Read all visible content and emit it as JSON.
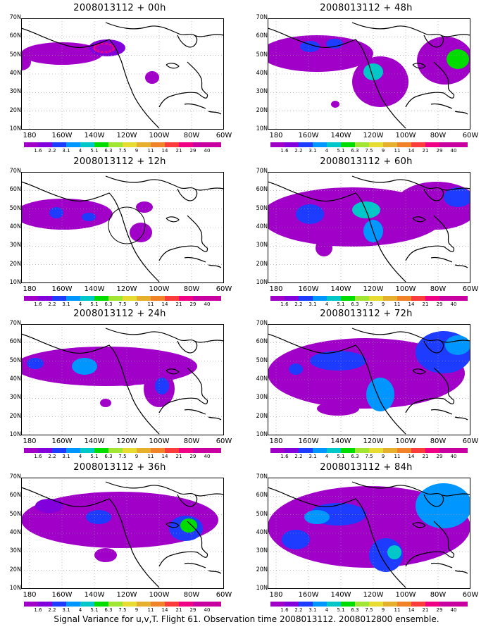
{
  "panels": [
    {
      "title": "2008013112 + 00h"
    },
    {
      "title": "2008013112 + 48h"
    },
    {
      "title": "2008013112 + 12h"
    },
    {
      "title": "2008013112 + 60h"
    },
    {
      "title": "2008013112 + 24h"
    },
    {
      "title": "2008013112 + 72h"
    },
    {
      "title": "2008013112 + 36h"
    },
    {
      "title": "2008013112 + 84h"
    }
  ],
  "axes": {
    "lat_labels": [
      "70N",
      "60N",
      "50N",
      "40N",
      "30N",
      "20N",
      "10N"
    ],
    "lon_labels": [
      "180",
      "160W",
      "140W",
      "120W",
      "100W",
      "80W",
      "60W"
    ]
  },
  "colorbar": {
    "labels": [
      "1.6",
      "2.2",
      "3.1",
      "4",
      "5.1",
      "6.3",
      "7.5",
      "9",
      "11",
      "14",
      "21",
      "29",
      "40"
    ],
    "colors": [
      "#a000c8",
      "#8200dc",
      "#1e3cff",
      "#0096ff",
      "#00c8c8",
      "#00dc00",
      "#a0e632",
      "#e6dc32",
      "#e6af2d",
      "#f08228",
      "#fa3c3c",
      "#f00082",
      "#c800a0"
    ]
  },
  "colors": {
    "purple": "#a000c8",
    "violet": "#8200dc",
    "blue": "#1e3cff",
    "sky": "#0096ff",
    "teal": "#00c8c8",
    "green": "#00dc00",
    "lime": "#a0e632",
    "marker": "#f00082"
  },
  "caption": "Signal Variance for u,v,T. Flight 61. Observation time 2008013112. 2008012800 ensemble."
}
